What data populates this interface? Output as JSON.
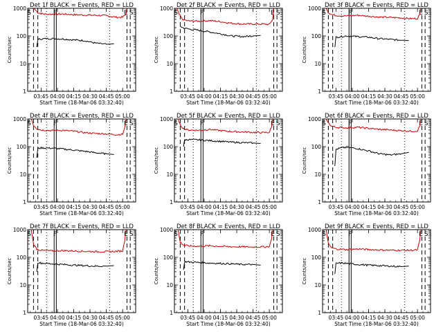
{
  "chart_data": [
    {
      "type": "line",
      "title": "Det 1f BLACK = Events, RED = LLD",
      "xlabel": "Start Time (18-Mar-06 03:32:40)",
      "ylabel": "Counts/sec",
      "y_scale": "log",
      "ylim": [
        1,
        1000
      ],
      "ytick_labels": [
        "1",
        "10",
        "100",
        "1000"
      ],
      "xlim": [
        "03:32:40",
        "05:12:00"
      ],
      "xtick_labels": [
        "03:45",
        "04:00",
        "04:15",
        "04:30",
        "04:45",
        "05:00"
      ],
      "markers": [
        "S",
        "F",
        "E",
        "S"
      ],
      "series": [
        {
          "color": "#cc0000",
          "x": [
            "03:38",
            "03:40",
            "03:42",
            "03:45",
            "03:48",
            "03:55",
            "04:05",
            "04:15",
            "04:25",
            "04:35",
            "04:45",
            "04:55",
            "05:00",
            "05:03",
            "05:04"
          ],
          "values": [
            1000,
            850,
            700,
            650,
            620,
            610,
            620,
            590,
            570,
            560,
            540,
            470,
            480,
            600,
            1000
          ]
        },
        {
          "color": "#000000",
          "x": [
            "03:41",
            "03:42",
            "03:45",
            "03:50",
            "03:55",
            "04:05",
            "04:15",
            "04:25",
            "04:35",
            "04:45",
            "04:52"
          ],
          "values": [
            40,
            75,
            78,
            80,
            80,
            78,
            72,
            68,
            55,
            50,
            52
          ]
        }
      ]
    },
    {
      "type": "line",
      "title": "Det 2f BLACK = Events, RED = LLD",
      "xlabel": "Start Time (18-Mar-06 03:32:40)",
      "ylabel": "Counts/sec",
      "y_scale": "log",
      "ylim": [
        1,
        1000
      ],
      "ytick_labels": [
        "1",
        "10",
        "100",
        "1000"
      ],
      "xlim": [
        "03:32:40",
        "05:12:00"
      ],
      "xtick_labels": [
        "03:45",
        "04:00",
        "04:15",
        "04:30",
        "04:45",
        "05:00"
      ],
      "markers": [
        "S",
        "F",
        "E",
        "S"
      ],
      "series": [
        {
          "color": "#cc0000",
          "x": [
            "03:35",
            "03:37",
            "03:40",
            "03:45",
            "03:55",
            "04:05",
            "04:15",
            "04:25",
            "04:35",
            "04:45",
            "04:55",
            "05:00",
            "05:03",
            "05:04"
          ],
          "values": [
            1000,
            600,
            400,
            350,
            340,
            360,
            330,
            290,
            270,
            270,
            270,
            260,
            400,
            1000
          ]
        },
        {
          "color": "#000000",
          "x": [
            "03:38",
            "03:40",
            "03:45",
            "03:55",
            "04:05",
            "04:15",
            "04:25",
            "04:35",
            "04:45",
            "04:52"
          ],
          "values": [
            220,
            200,
            180,
            160,
            140,
            120,
            100,
            95,
            100,
            105
          ]
        }
      ]
    },
    {
      "type": "line",
      "title": "Det 3f BLACK = Events, RED = LLD",
      "xlabel": "Start Time (18-Mar-06 03:32:40)",
      "ylabel": "Counts/sec",
      "y_scale": "log",
      "ylim": [
        1,
        1000
      ],
      "ytick_labels": [
        "1",
        "10",
        "100",
        "1000"
      ],
      "xlim": [
        "03:32:40",
        "05:12:00"
      ],
      "xtick_labels": [
        "03:45",
        "04:00",
        "04:15",
        "04:30",
        "04:45",
        "05:00"
      ],
      "markers": [
        "S",
        "F",
        "E",
        "S"
      ],
      "series": [
        {
          "color": "#cc0000",
          "x": [
            "03:36",
            "03:38",
            "03:41",
            "03:45",
            "03:55",
            "04:05",
            "04:15",
            "04:25",
            "04:35",
            "04:45",
            "04:55",
            "05:00",
            "05:02",
            "05:03"
          ],
          "values": [
            1000,
            700,
            600,
            550,
            530,
            560,
            520,
            480,
            470,
            450,
            420,
            430,
            600,
            1000
          ]
        },
        {
          "color": "#000000",
          "x": [
            "03:44",
            "03:45",
            "03:50",
            "03:55",
            "04:05",
            "04:15",
            "04:25",
            "04:35",
            "04:45",
            "04:52"
          ],
          "values": [
            40,
            90,
            95,
            100,
            95,
            90,
            80,
            75,
            70,
            68
          ]
        }
      ]
    },
    {
      "type": "line",
      "title": "Det 4f BLACK = Events, RED = LLD",
      "xlabel": "Start Time (18-Mar-06 03:32:40)",
      "ylabel": "Counts/sec",
      "y_scale": "log",
      "ylim": [
        1,
        1000
      ],
      "ytick_labels": [
        "1",
        "10",
        "100",
        "1000"
      ],
      "xlim": [
        "03:32:40",
        "05:12:00"
      ],
      "xtick_labels": [
        "03:45",
        "04:00",
        "04:15",
        "04:30",
        "04:45",
        "05:00"
      ],
      "markers": [
        "S",
        "F",
        "E",
        "S"
      ],
      "series": [
        {
          "color": "#cc0000",
          "x": [
            "03:36",
            "03:38",
            "03:41",
            "03:45",
            "03:55",
            "04:05",
            "04:15",
            "04:25",
            "04:35",
            "04:45",
            "04:55",
            "05:00",
            "05:02",
            "05:03"
          ],
          "values": [
            1000,
            600,
            450,
            400,
            380,
            390,
            360,
            320,
            300,
            290,
            270,
            280,
            500,
            1000
          ]
        },
        {
          "color": "#000000",
          "x": [
            "03:41",
            "03:42",
            "03:45",
            "03:55",
            "04:05",
            "04:15",
            "04:25",
            "04:35",
            "04:45",
            "04:52"
          ],
          "values": [
            40,
            85,
            90,
            88,
            82,
            75,
            68,
            60,
            55,
            52
          ]
        }
      ]
    },
    {
      "type": "line",
      "title": "Det 5f BLACK = Events, RED = LLD",
      "xlabel": "Start Time (18-Mar-06 03:32:40)",
      "ylabel": "Counts/sec",
      "y_scale": "log",
      "ylim": [
        1,
        1000
      ],
      "ytick_labels": [
        "1",
        "10",
        "100",
        "1000"
      ],
      "xlim": [
        "03:32:40",
        "05:12:00"
      ],
      "xtick_labels": [
        "03:45",
        "04:00",
        "04:15",
        "04:30",
        "04:45",
        "05:00"
      ],
      "markers": [
        "S",
        "F",
        "E",
        "S"
      ],
      "series": [
        {
          "color": "#cc0000",
          "x": [
            "03:36",
            "03:38",
            "03:41",
            "03:45",
            "03:55",
            "04:05",
            "04:15",
            "04:25",
            "04:35",
            "04:45",
            "04:55",
            "05:00",
            "05:02",
            "05:03"
          ],
          "values": [
            1000,
            600,
            450,
            400,
            390,
            420,
            380,
            350,
            340,
            330,
            320,
            330,
            500,
            1000
          ]
        },
        {
          "color": "#000000",
          "x": [
            "03:41",
            "03:42",
            "03:45",
            "03:55",
            "04:05",
            "04:15",
            "04:25",
            "04:35",
            "04:45",
            "04:52"
          ],
          "values": [
            100,
            175,
            180,
            175,
            165,
            155,
            145,
            140,
            135,
            130
          ]
        }
      ]
    },
    {
      "type": "line",
      "title": "Det 6f BLACK = Events, RED = LLD",
      "xlabel": "Start Time (18-Mar-06 03:32:40)",
      "ylabel": "Counts/sec",
      "y_scale": "log",
      "ylim": [
        1,
        1000
      ],
      "ytick_labels": [
        "1",
        "10",
        "100",
        "1000"
      ],
      "xlim": [
        "03:32:40",
        "05:12:00"
      ],
      "xtick_labels": [
        "03:45",
        "04:00",
        "04:15",
        "04:30",
        "04:45",
        "05:00"
      ],
      "markers": [
        "S",
        "F",
        "E",
        "S"
      ],
      "series": [
        {
          "color": "#cc0000",
          "x": [
            "03:36",
            "03:38",
            "03:41",
            "03:45",
            "03:55",
            "04:05",
            "04:15",
            "04:25",
            "04:35",
            "04:45",
            "04:55",
            "05:00",
            "05:02",
            "05:03"
          ],
          "values": [
            1000,
            700,
            550,
            500,
            480,
            500,
            460,
            420,
            400,
            380,
            360,
            370,
            550,
            1000
          ]
        },
        {
          "color": "#000000",
          "x": [
            "03:44",
            "03:45",
            "03:50",
            "03:55",
            "04:05",
            "04:15",
            "04:25",
            "04:35",
            "04:45",
            "04:52"
          ],
          "values": [
            20,
            80,
            90,
            95,
            85,
            70,
            55,
            50,
            55,
            62
          ]
        }
      ]
    },
    {
      "type": "line",
      "title": "Det 7f BLACK = Events, RED = LLD",
      "xlabel": "Start Time (18-Mar-06 03:32:40)",
      "ylabel": "Counts/sec",
      "y_scale": "log",
      "ylim": [
        1,
        1000
      ],
      "ytick_labels": [
        "1",
        "10",
        "100",
        "1000"
      ],
      "xlim": [
        "03:32:40",
        "05:12:00"
      ],
      "xtick_labels": [
        "03:45",
        "04:00",
        "04:15",
        "04:30",
        "04:45",
        "05:00"
      ],
      "markers": [
        "S",
        "F",
        "E",
        "S"
      ],
      "series": [
        {
          "color": "#cc0000",
          "x": [
            "03:36",
            "03:38",
            "03:41",
            "03:45",
            "03:55",
            "04:05",
            "04:15",
            "04:25",
            "04:35",
            "04:45",
            "04:55",
            "05:00",
            "05:02",
            "05:03"
          ],
          "values": [
            1000,
            300,
            200,
            180,
            170,
            175,
            170,
            165,
            160,
            160,
            165,
            170,
            400,
            1000
          ]
        },
        {
          "color": "#000000",
          "x": [
            "03:41",
            "03:42",
            "03:45",
            "03:55",
            "04:05",
            "04:15",
            "04:25",
            "04:35",
            "04:45",
            "04:52"
          ],
          "values": [
            30,
            65,
            62,
            58,
            55,
            52,
            50,
            48,
            48,
            50
          ]
        }
      ]
    },
    {
      "type": "line",
      "title": "Det 8f BLACK = Events, RED = LLD",
      "xlabel": "Start Time (18-Mar-06 03:32:40)",
      "ylabel": "Counts/sec",
      "y_scale": "log",
      "ylim": [
        1,
        1000
      ],
      "ytick_labels": [
        "1",
        "10",
        "100",
        "1000"
      ],
      "xlim": [
        "03:32:40",
        "05:12:00"
      ],
      "xtick_labels": [
        "03:45",
        "04:00",
        "04:15",
        "04:30",
        "04:45",
        "05:00"
      ],
      "markers": [
        "S",
        "F",
        "E",
        "S"
      ],
      "series": [
        {
          "color": "#cc0000",
          "x": [
            "03:36",
            "03:38",
            "03:41",
            "03:45",
            "03:55",
            "04:05",
            "04:15",
            "04:25",
            "04:35",
            "04:45",
            "04:55",
            "05:00",
            "05:02",
            "05:03"
          ],
          "values": [
            1000,
            350,
            280,
            260,
            250,
            260,
            250,
            240,
            240,
            235,
            240,
            245,
            450,
            1000
          ]
        },
        {
          "color": "#000000",
          "x": [
            "03:41",
            "03:42",
            "03:45",
            "03:55",
            "04:05",
            "04:15",
            "04:25",
            "04:35",
            "04:45",
            "04:52"
          ],
          "values": [
            35,
            70,
            68,
            65,
            62,
            60,
            58,
            55,
            55,
            52
          ]
        }
      ]
    },
    {
      "type": "line",
      "title": "Det 9f BLACK = Events, RED = LLD",
      "xlabel": "Start Time (18-Mar-06 03:32:40)",
      "ylabel": "Counts/sec",
      "y_scale": "log",
      "ylim": [
        1,
        1000
      ],
      "ytick_labels": [
        "1",
        "10",
        "100",
        "1000"
      ],
      "xlim": [
        "03:32:40",
        "05:12:00"
      ],
      "xtick_labels": [
        "03:45",
        "04:00",
        "04:15",
        "04:30",
        "04:45",
        "05:00"
      ],
      "markers": [
        "S",
        "F",
        "E",
        "S"
      ],
      "series": [
        {
          "color": "#cc0000",
          "x": [
            "03:36",
            "03:38",
            "03:41",
            "03:45",
            "03:55",
            "04:05",
            "04:15",
            "04:25",
            "04:35",
            "04:45",
            "04:55",
            "05:00",
            "05:02",
            "05:03"
          ],
          "values": [
            1000,
            300,
            220,
            200,
            190,
            200,
            190,
            185,
            180,
            180,
            180,
            185,
            400,
            1000
          ]
        },
        {
          "color": "#000000",
          "x": [
            "03:44",
            "03:45",
            "03:50",
            "03:55",
            "04:05",
            "04:15",
            "04:25",
            "04:35",
            "04:45",
            "04:52"
          ],
          "values": [
            25,
            60,
            62,
            60,
            55,
            52,
            50,
            48,
            46,
            48
          ]
        }
      ]
    }
  ]
}
